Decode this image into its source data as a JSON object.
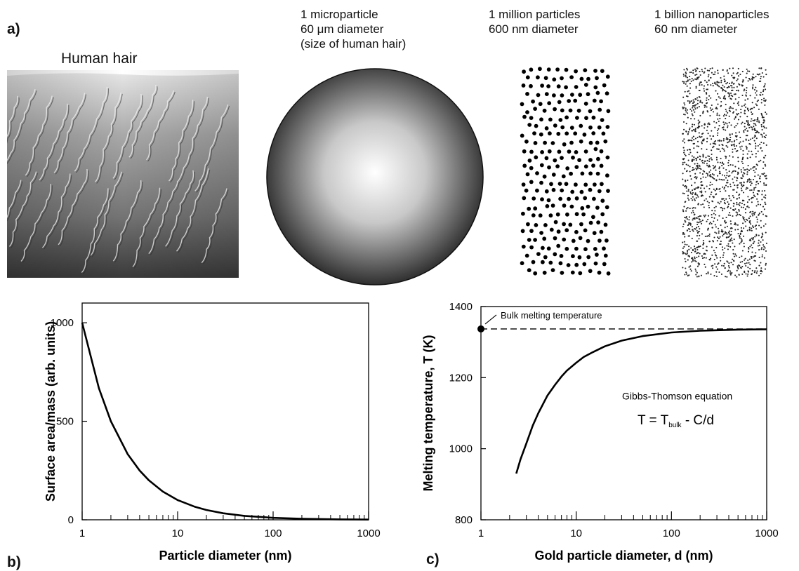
{
  "panel_a": {
    "label": "a)",
    "hair_title": "Human hair",
    "microparticle": [
      "1 microparticle",
      "60 μm diameter",
      "(size of human hair)"
    ],
    "million": [
      "1 million particles",
      "600 nm diameter"
    ],
    "billion": [
      "1 billion nanoparticles",
      "60 nm diameter"
    ]
  },
  "panel_b": {
    "label": "b)"
  },
  "panel_c": {
    "label": "c)"
  },
  "chart_data": [
    {
      "type": "line",
      "xlabel": "Particle diameter (nm)",
      "ylabel": "Surface area/mass (arb. units)",
      "xscale": "log",
      "xlim": [
        1,
        1000
      ],
      "ylim": [
        0,
        1100
      ],
      "xticks": [
        "1",
        "10",
        "100",
        "1000"
      ],
      "yticks": [
        "0",
        "500",
        "1000"
      ],
      "series": [
        {
          "x": [
            1,
            1.5,
            2,
            3,
            4,
            5,
            7,
            10,
            15,
            20,
            30,
            50,
            100,
            200,
            500,
            1000
          ],
          "y": [
            1000,
            667,
            500,
            333,
            250,
            200,
            143,
            100,
            67,
            50,
            33,
            20,
            10,
            5,
            2,
            1
          ]
        }
      ]
    },
    {
      "type": "line",
      "xlabel": "Gold particle diameter, d (nm)",
      "ylabel": "Melting temperature, T (K)",
      "xscale": "log",
      "xlim": [
        1,
        1000
      ],
      "ylim": [
        800,
        1400
      ],
      "xticks": [
        "1",
        "10",
        "100",
        "1000"
      ],
      "yticks": [
        "800",
        "1000",
        "1200",
        "1400"
      ],
      "bulk_line": 1337,
      "annotations": {
        "bulk_label": "Bulk melting temperature",
        "equation_title": "Gibbs-Thomson equation",
        "eq_prefix": "T = T",
        "eq_sub": "bulk",
        "eq_suffix": " - C/d"
      },
      "series": [
        {
          "x": [
            2.35,
            2.6,
            3,
            3.5,
            4,
            5,
            6,
            7,
            8,
            10,
            12,
            15,
            20,
            30,
            50,
            100,
            200,
            500,
            1000
          ],
          "y": [
            930,
            970,
            1015,
            1065,
            1100,
            1150,
            1180,
            1203,
            1220,
            1242,
            1258,
            1272,
            1288,
            1304,
            1317,
            1327,
            1332,
            1335,
            1336
          ]
        }
      ]
    }
  ]
}
